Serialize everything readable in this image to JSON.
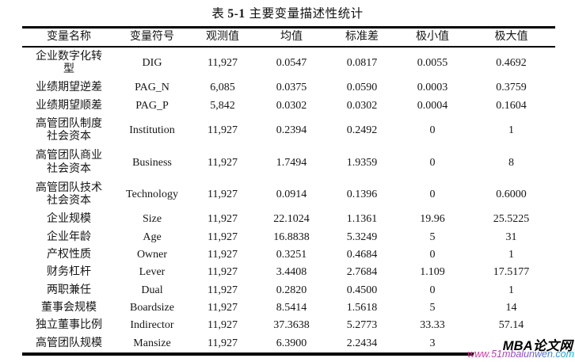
{
  "caption": {
    "prefix": "表",
    "number": "5-1",
    "text": "主要变量描述性统计"
  },
  "table": {
    "headers": [
      "变量名称",
      "变量符号",
      "观测值",
      "均值",
      "标准差",
      "极小值",
      "极大值"
    ],
    "rows": [
      {
        "name": "企业数字化转\n型",
        "symbol": "DIG",
        "obs": "11,927",
        "mean": "0.0547",
        "sd": "0.0817",
        "min": "0.0055",
        "max": "0.4692"
      },
      {
        "name": "业绩期望逆差",
        "symbol": "PAG_N",
        "obs": "6,085",
        "mean": "0.0375",
        "sd": "0.0590",
        "min": "0.0003",
        "max": "0.3759"
      },
      {
        "name": "业绩期望顺差",
        "symbol": "PAG_P",
        "obs": "5,842",
        "mean": "0.0302",
        "sd": "0.0302",
        "min": "0.0004",
        "max": "0.1604"
      },
      {
        "name": "高管团队制度\n社会资本",
        "symbol": "Institution",
        "obs": "11,927",
        "mean": "0.2394",
        "sd": "0.2492",
        "min": "0",
        "max": "1"
      },
      {
        "name": "高管团队商业\n社会资本",
        "symbol": "Business",
        "obs": "11,927",
        "mean": "1.7494",
        "sd": "1.9359",
        "min": "0",
        "max": "8"
      },
      {
        "name": "高管团队技术\n社会资本",
        "symbol": "Technology",
        "obs": "11,927",
        "mean": "0.0914",
        "sd": "0.1396",
        "min": "0",
        "max": "0.6000"
      },
      {
        "name": "企业规模",
        "symbol": "Size",
        "obs": "11,927",
        "mean": "22.1024",
        "sd": "1.1361",
        "min": "19.96",
        "max": "25.5225"
      },
      {
        "name": "企业年龄",
        "symbol": "Age",
        "obs": "11,927",
        "mean": "16.8838",
        "sd": "5.3249",
        "min": "5",
        "max": "31"
      },
      {
        "name": "产权性质",
        "symbol": "Owner",
        "obs": "11,927",
        "mean": "0.3251",
        "sd": "0.4684",
        "min": "0",
        "max": "1"
      },
      {
        "name": "财务杠杆",
        "symbol": "Lever",
        "obs": "11,927",
        "mean": "3.4408",
        "sd": "2.7684",
        "min": "1.109",
        "max": "17.5177"
      },
      {
        "name": "两职兼任",
        "symbol": "Dual",
        "obs": "11,927",
        "mean": "0.2820",
        "sd": "0.4500",
        "min": "0",
        "max": "1"
      },
      {
        "name": "董事会规模",
        "symbol": "Boardsize",
        "obs": "11,927",
        "mean": "8.5414",
        "sd": "1.5618",
        "min": "5",
        "max": "14"
      },
      {
        "name": "独立董事比例",
        "symbol": "Indirector",
        "obs": "11,927",
        "mean": "37.3638",
        "sd": "5.2773",
        "min": "33.33",
        "max": "57.14"
      },
      {
        "name": "高管团队规模",
        "symbol": "Mansize",
        "obs": "11,927",
        "mean": "6.3900",
        "sd": "2.2434",
        "min": "3",
        "max": ""
      }
    ]
  },
  "watermark": {
    "site_name": "MBA论文网",
    "url": "www.51mbalunwen.com",
    "url_gradient_colors": [
      "#e03a97",
      "#8d48c0",
      "#00b4dd"
    ]
  }
}
